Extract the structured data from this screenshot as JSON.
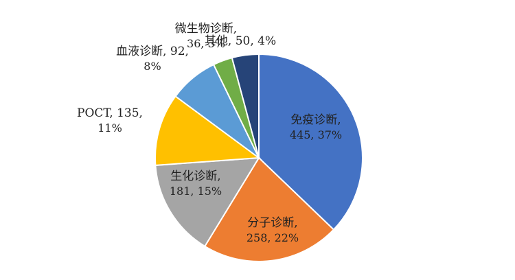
{
  "chart_data": {
    "type": "pie",
    "title": "",
    "slices": [
      {
        "name": "免疫诊断",
        "value": 445,
        "percent": "37%",
        "color": "#4472C4",
        "label_lines": [
          "免疫诊断,",
          "445, 37%"
        ]
      },
      {
        "name": "分子诊断",
        "value": 258,
        "percent": "22%",
        "color": "#ED7D31",
        "label_lines": [
          "分子诊断,",
          "258, 22%"
        ]
      },
      {
        "name": "生化诊断",
        "value": 181,
        "percent": "15%",
        "color": "#A5A5A5",
        "label_lines": [
          "生化诊断,",
          "181, 15%"
        ]
      },
      {
        "name": "POCT",
        "value": 135,
        "percent": "11%",
        "color": "#FFC000",
        "label_lines": [
          "POCT, 135,",
          "11%"
        ]
      },
      {
        "name": "血液诊断",
        "value": 92,
        "percent": "8%",
        "color": "#5B9BD5",
        "label_lines": [
          "血液诊断, 92,",
          "8%"
        ]
      },
      {
        "name": "微生物诊断",
        "value": 36,
        "percent": "3%",
        "color": "#70AD47",
        "label_lines": [
          "微生物诊断,",
          "36, 3%"
        ]
      },
      {
        "name": "其他",
        "value": 50,
        "percent": "4%",
        "color": "#264478",
        "label_lines": [
          "其他, 50, 4%"
        ]
      }
    ]
  }
}
